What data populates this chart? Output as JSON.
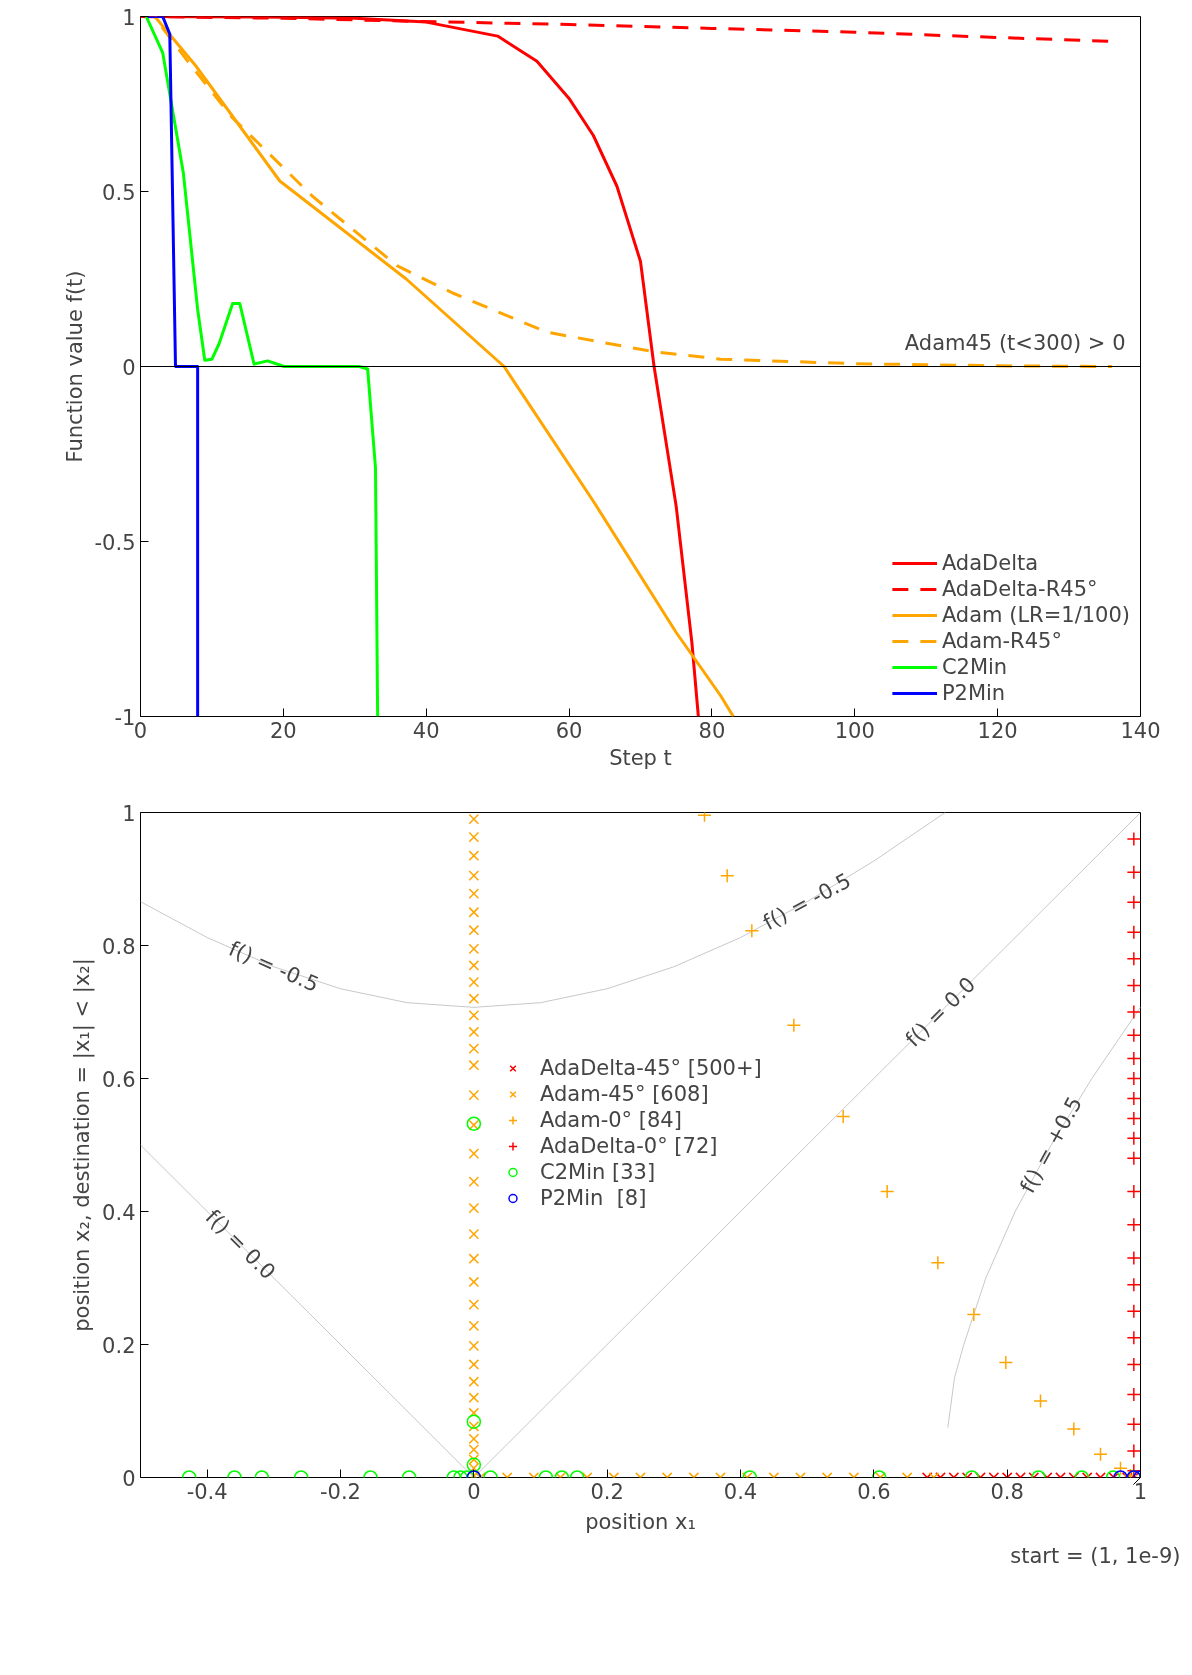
{
  "chart_data": [
    {
      "type": "line",
      "xlabel": "Step t",
      "ylabel": "Function value f(t)",
      "xlim": [
        0,
        140
      ],
      "ylim": [
        -1,
        1
      ],
      "xticks": [
        0,
        20,
        40,
        60,
        80,
        100,
        120,
        140
      ],
      "yticks": [
        -1,
        -0.5,
        0,
        0.5,
        1
      ],
      "grid": false,
      "legend": "bottom right",
      "ref_lines": [
        {
          "axis": "y",
          "value": 0,
          "color": "#000000"
        }
      ],
      "annotations": [
        "Adam45 (t<300) > 0"
      ],
      "series": [
        {
          "name": "AdaDelta",
          "color": "#ff0000",
          "line_style": "solid",
          "x": [
            0,
            20,
            30,
            40,
            50,
            55.5,
            60,
            63.4,
            66.7,
            70,
            71.9,
            75,
            77.2,
            78.1
          ],
          "values": [
            1,
            0.998,
            0.995,
            0.984,
            0.944,
            0.872,
            0.766,
            0.66,
            0.515,
            0.3,
            0,
            -0.4,
            -0.79,
            -1
          ]
        },
        {
          "name": "AdaDelta-R45°",
          "color": "#ff0000",
          "line_style": "dashed",
          "x": [
            0,
            20,
            39,
            60,
            80,
            100,
            120,
            136
          ],
          "values": [
            1,
            0.995,
            0.986,
            0.977,
            0.966,
            0.955,
            0.94,
            0.929
          ]
        },
        {
          "name": "Adam (LR=1/100)",
          "color": "#ffa500",
          "line_style": "solid",
          "x": [
            2,
            7.7,
            19.5,
            37.2,
            50.9,
            63.4,
            75,
            81.2,
            83
          ],
          "values": [
            1,
            0.86,
            0.53,
            0.25,
            0,
            -0.385,
            -0.76,
            -0.94,
            -1
          ]
        },
        {
          "name": "Adam-R45°",
          "color": "#ffa500",
          "line_style": "dashed",
          "x": [
            3,
            6.7,
            12.9,
            24.1,
            35.9,
            43.7,
            56.9,
            71.9,
            81.2,
            100,
            120,
            136
          ],
          "values": [
            0.97,
            0.87,
            0.71,
            0.486,
            0.288,
            0.21,
            0.098,
            0.042,
            0.021,
            0.008,
            0.002,
            0
          ]
        },
        {
          "name": "C2Min",
          "color": "#00ff00",
          "line_style": "solid",
          "x": [
            0.8,
            3.1,
            6,
            8,
            9,
            10,
            11,
            12.9,
            13.9,
            15.9,
            17.8,
            20.1,
            30.6,
            31.8,
            32.9,
            33.2
          ],
          "values": [
            1,
            0.897,
            0.553,
            0.163,
            0.018,
            0.021,
            0.065,
            0.18,
            0.18,
            0.007,
            0.016,
            0,
            0,
            -0.007,
            -0.29,
            -1
          ]
        },
        {
          "name": "P2Min",
          "color": "#0000ff",
          "line_style": "solid",
          "x": [
            1,
            3.1,
            4.1,
            4.9,
            8,
            8
          ],
          "values": [
            1,
            1,
            0.95,
            0,
            0,
            -1
          ]
        }
      ]
    },
    {
      "type": "scatter",
      "xlabel": "position x₁",
      "ylabel": "position x₂, destination = |x₁| < |x₂|",
      "xlim": [
        -0.5,
        1
      ],
      "ylim": [
        0,
        1
      ],
      "xticks": [
        -0.4,
        -0.2,
        0,
        0.2,
        0.4,
        0.6,
        0.8,
        1
      ],
      "yticks": [
        0,
        0.2,
        0.4,
        0.6,
        0.8,
        1
      ],
      "grid": false,
      "legend": "center",
      "annotations": [
        {
          "text": "f() = -0.5",
          "x": -0.3,
          "y": 0.768
        },
        {
          "text": "f() = -0.5",
          "x": 0.5,
          "y": 0.866
        },
        {
          "text": "f() = 0.0",
          "x": 0.7,
          "y": 0.7
        },
        {
          "text": "f() = +0.5",
          "x": 0.866,
          "y": 0.5
        },
        {
          "text": "f() = 0.0",
          "x": -0.35,
          "y": 0.35
        },
        {
          "text": "start = (1, 1e-9)",
          "x": 1,
          "y": 0
        }
      ],
      "series": [
        {
          "type": "line",
          "color": "#c8c8c8",
          "x": [
            -0.5,
            -0.4,
            -0.3,
            -0.2,
            -0.1,
            0,
            0.1,
            0.2,
            0.3,
            0.4,
            0.5,
            0.6,
            0.707
          ],
          "values": [
            0.866,
            0.812,
            0.768,
            0.735,
            0.714,
            0.707,
            0.714,
            0.735,
            0.768,
            0.812,
            0.866,
            0.927,
            1
          ]
        },
        {
          "type": "line",
          "color": "#c8c8c8",
          "x": [
            -0.5,
            0
          ],
          "values": [
            0.5,
            0
          ]
        },
        {
          "type": "line",
          "color": "#c8c8c8",
          "x": [
            0,
            1
          ],
          "values": [
            0,
            1
          ]
        },
        {
          "type": "line",
          "color": "#c8c8c8",
          "x": [
            0.711,
            0.721,
            0.735,
            0.768,
            0.812,
            0.866,
            0.927,
            0.995,
            1
          ],
          "values": [
            0.075,
            0.15,
            0.2,
            0.3,
            0.4,
            0.5,
            0.6,
            0.7,
            0.707
          ]
        },
        {
          "name": "AdaDelta-45° [500+]",
          "color": "#ff0000",
          "marker": "x",
          "x": [
            0.68,
            0.7,
            0.72,
            0.74,
            0.76,
            0.78,
            0.8,
            0.82,
            0.84,
            0.86,
            0.88,
            0.9,
            0.92,
            0.94,
            0.96,
            0.98,
            0.99
          ],
          "values": [
            0,
            0,
            0,
            0,
            0,
            0,
            0,
            0,
            0,
            0,
            0,
            0,
            0,
            0,
            0,
            0,
            0
          ]
        },
        {
          "name": "Adam-45° [608]",
          "color": "#ffa500",
          "marker": "x",
          "x": [
            0,
            0,
            0,
            0,
            0,
            0,
            0,
            0,
            0,
            0,
            0,
            0,
            0,
            0,
            0,
            0,
            0,
            0,
            0,
            0,
            0,
            0,
            0,
            0,
            0,
            0,
            0,
            0,
            0,
            0,
            0,
            0,
            0,
            0,
            0,
            0,
            0.01,
            0.05,
            0.09,
            0.13,
            0.17,
            0.21,
            0.25,
            0.29,
            0.33,
            0.37,
            0.41,
            0.45,
            0.49,
            0.53,
            0.57,
            0.61,
            0.65,
            0.69
          ],
          "values": [
            0.99,
            0.963,
            0.935,
            0.905,
            0.878,
            0.85,
            0.823,
            0.795,
            0.77,
            0.745,
            0.72,
            0.695,
            0.67,
            0.645,
            0.62,
            0.575,
            0.53,
            0.487,
            0.445,
            0.405,
            0.366,
            0.329,
            0.294,
            0.26,
            0.228,
            0.198,
            0.17,
            0.144,
            0.12,
            0.097,
            0.077,
            0.058,
            0.042,
            0.027,
            0.014,
            0.003,
            0,
            0,
            0,
            0,
            0,
            0,
            0,
            0,
            0,
            0,
            0,
            0,
            0,
            0,
            0,
            0,
            0,
            0
          ]
        },
        {
          "name": "Adam-0° [84]",
          "color": "#ffa500",
          "marker": "cross",
          "x": [
            0.346,
            0.38,
            0.417,
            0.48,
            0.554,
            0.62,
            0.696,
            0.75,
            0.798,
            0.85,
            0.9,
            0.94,
            0.97,
            0.985
          ],
          "values": [
            0.996,
            0.905,
            0.822,
            0.68,
            0.543,
            0.43,
            0.323,
            0.245,
            0.173,
            0.115,
            0.073,
            0.035,
            0.014,
            0.003
          ]
        },
        {
          "name": "AdaDelta-0° [72]",
          "color": "#ff0000",
          "marker": "cross",
          "x": [
            0.99,
            0.99,
            0.99,
            0.99,
            0.99,
            0.99,
            0.99,
            0.99,
            0.99,
            0.99,
            0.99,
            0.99,
            0.99,
            0.99,
            0.99,
            0.99,
            0.99,
            0.99,
            0.99,
            0.99,
            0.99,
            0.99,
            0.99,
            0.99,
            0.99
          ],
          "values": [
            0.96,
            0.91,
            0.865,
            0.82,
            0.78,
            0.74,
            0.7,
            0.665,
            0.63,
            0.6,
            0.57,
            0.54,
            0.51,
            0.48,
            0.43,
            0.38,
            0.33,
            0.29,
            0.25,
            0.21,
            0.17,
            0.125,
            0.08,
            0.04,
            0.01
          ]
        },
        {
          "name": "C2Min [33]",
          "color": "#00ff00",
          "marker": "circle",
          "x": [
            -0.427,
            -0.359,
            -0.318,
            -0.259,
            -0.155,
            -0.097,
            -0.03,
            -0.02,
            -0.01,
            0,
            0,
            0,
            0,
            0.025,
            0.108,
            0.132,
            0.155,
            0.414,
            0.608,
            0.747,
            0.847,
            0.912,
            0.959,
            0.99
          ],
          "values": [
            0,
            0,
            0,
            0,
            0,
            0,
            0,
            0,
            0,
            0.532,
            0.084,
            0.019,
            0,
            0,
            0,
            0,
            0,
            0,
            0,
            0,
            0,
            0,
            0,
            0
          ]
        },
        {
          "name": "P2Min  [8]",
          "color": "#0000ff",
          "marker": "circle",
          "x": [
            0,
            0.97,
            0.99,
            1
          ],
          "values": [
            0,
            0,
            0,
            0
          ]
        }
      ]
    }
  ]
}
